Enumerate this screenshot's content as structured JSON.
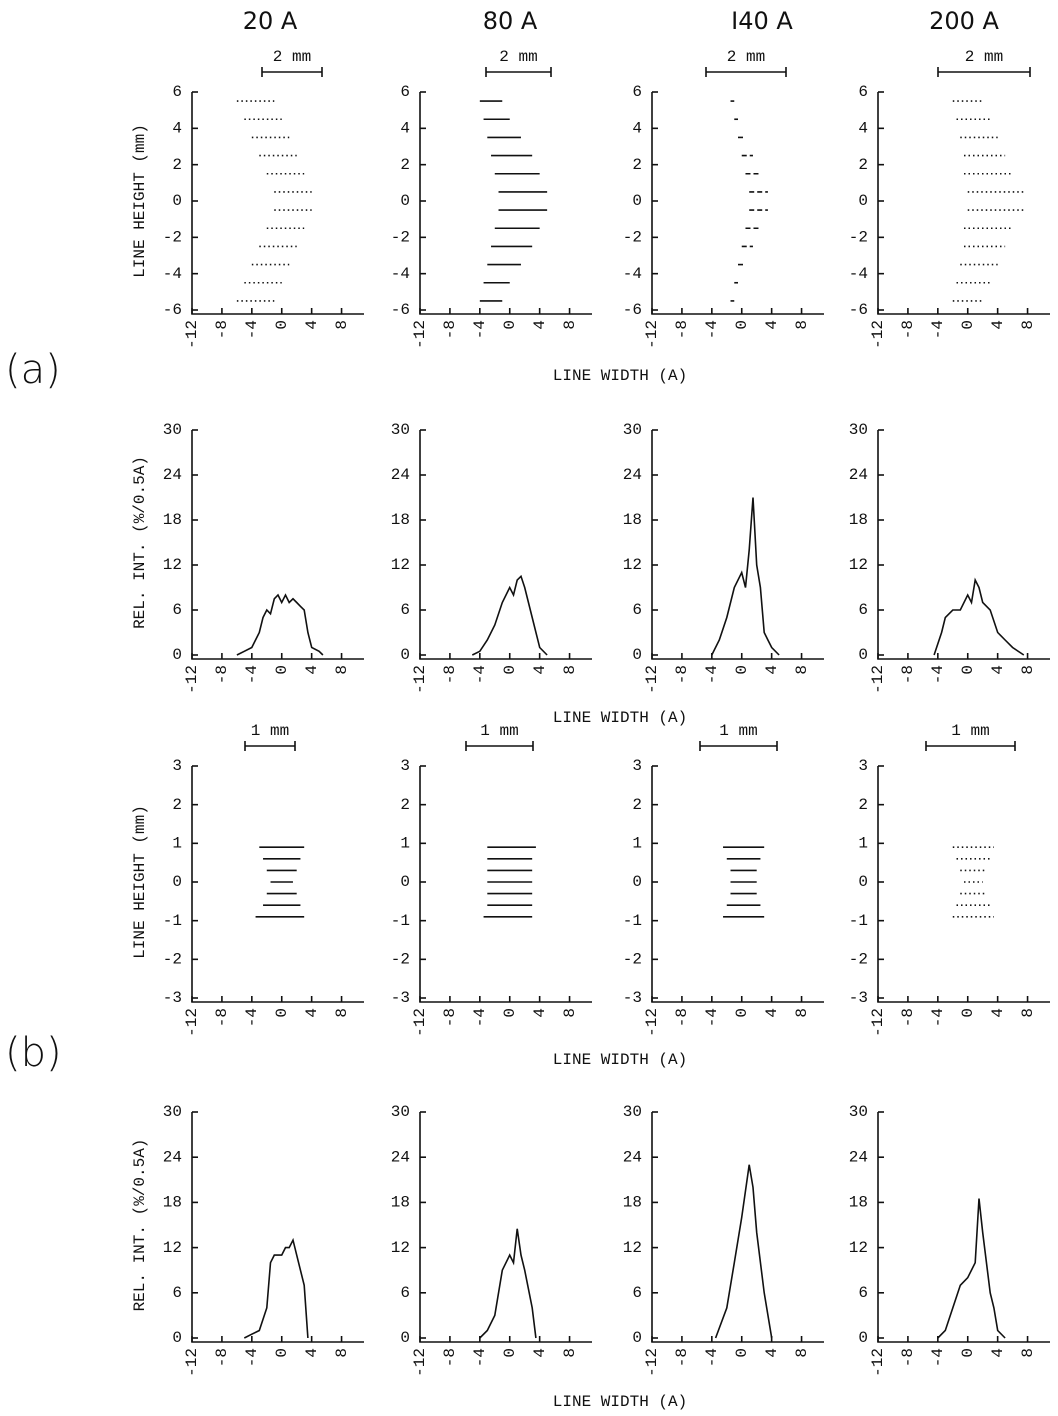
{
  "column_titles": [
    "20 A",
    "80 A",
    "I40 A",
    "200 A"
  ],
  "panel_labels": [
    "(a)",
    "(b)"
  ],
  "row_x_labels": [
    "LINE WIDTH (A)",
    "LINE WIDTH (A)",
    "LINE WIDTH (A)",
    "LINE WIDTH (A)"
  ],
  "row_y_labels": [
    "LINE HEIGHT (mm)",
    "REL. INT. (%/0.5A)",
    "LINE HEIGHT (mm)",
    "REL. INT. (%/0.5A)"
  ],
  "chart_data": [
    {
      "type": "spot",
      "line_style": "dotted",
      "scale_label": "2 mm",
      "xlim": [
        -12,
        11
      ],
      "xticks": [
        -12,
        -8,
        -4,
        0,
        4,
        8
      ],
      "ylim": [
        -6,
        6
      ],
      "yticks": [
        -6,
        -4,
        -2,
        0,
        2,
        4,
        6
      ],
      "y": [
        5.5,
        4.5,
        3.5,
        2.5,
        1.5,
        0.5,
        -0.5,
        -1.5,
        -2.5,
        -3.5,
        -4.5,
        -5.5
      ],
      "x_start": [
        -6,
        -5,
        -4,
        -3,
        -2,
        -1,
        -1,
        -2,
        -3,
        -4,
        -5,
        -6
      ],
      "x_end": [
        -1,
        0,
        1,
        2,
        3,
        4,
        4,
        3,
        2,
        1,
        0,
        -1
      ]
    },
    {
      "type": "spot",
      "line_style": "solid",
      "scale_label": "2 mm",
      "xlim": [
        -12,
        11
      ],
      "xticks": [
        -12,
        -8,
        -4,
        0,
        4,
        8
      ],
      "ylim": [
        -6,
        6
      ],
      "yticks": [
        -6,
        -4,
        -2,
        0,
        2,
        4,
        6
      ],
      "y": [
        5.5,
        4.5,
        3.5,
        2.5,
        1.5,
        0.5,
        -0.5,
        -1.5,
        -2.5,
        -3.5,
        -4.5,
        -5.5
      ],
      "x_start": [
        -4,
        -3.5,
        -3,
        -2.5,
        -2,
        -1.5,
        -1.5,
        -2,
        -2.5,
        -3,
        -3.5,
        -4
      ],
      "x_end": [
        -1,
        0,
        1.5,
        3,
        4,
        5,
        5,
        4,
        3,
        1.5,
        0,
        -1
      ]
    },
    {
      "type": "spot",
      "line_style": "dashed",
      "scale_label": "2 mm",
      "xlim": [
        -12,
        11
      ],
      "xticks": [
        -12,
        -8,
        -4,
        0,
        4,
        8
      ],
      "ylim": [
        -6,
        6
      ],
      "yticks": [
        -6,
        -4,
        -2,
        0,
        2,
        4,
        6
      ],
      "y": [
        5.5,
        4.5,
        3.5,
        2.5,
        1.5,
        0.5,
        -0.5,
        -1.5,
        -2.5,
        -3.5,
        -4.5,
        -5.5
      ],
      "x_start": [
        -1.5,
        -1,
        -0.5,
        0,
        0.5,
        1,
        1,
        0.5,
        0,
        -0.5,
        -1,
        -1.5
      ],
      "x_end": [
        -1,
        -0.5,
        0.5,
        1.5,
        2.5,
        3.5,
        3.5,
        2.5,
        1.5,
        0.5,
        -0.5,
        -1
      ]
    },
    {
      "type": "spot",
      "line_style": "dotted",
      "scale_label": "2 mm",
      "xlim": [
        -12,
        11
      ],
      "xticks": [
        -12,
        -8,
        -4,
        0,
        4,
        8
      ],
      "ylim": [
        -6,
        6
      ],
      "yticks": [
        -6,
        -4,
        -2,
        0,
        2,
        4,
        6
      ],
      "y": [
        5.5,
        4.5,
        3.5,
        2.5,
        1.5,
        0.5,
        -0.5,
        -1.5,
        -2.5,
        -3.5,
        -4.5,
        -5.5
      ],
      "x_start": [
        -2,
        -1.5,
        -1,
        -0.5,
        -0.5,
        0,
        0,
        -0.5,
        -0.5,
        -1,
        -1.5,
        -2
      ],
      "x_end": [
        2,
        3,
        4,
        5,
        6,
        7.5,
        7.5,
        6,
        5,
        4,
        3,
        2
      ]
    },
    {
      "type": "line",
      "xlim": [
        -12,
        11
      ],
      "xticks": [
        -12,
        -8,
        -4,
        0,
        4,
        8
      ],
      "ylim": [
        0,
        30
      ],
      "yticks": [
        0,
        6,
        12,
        18,
        24,
        30
      ],
      "x": [
        -6,
        -5,
        -4,
        -3,
        -2.5,
        -2,
        -1.5,
        -1,
        -0.5,
        0,
        0.5,
        1,
        1.5,
        2,
        2.5,
        3,
        3.5,
        4,
        5,
        5.5
      ],
      "values": [
        0,
        0.5,
        1,
        3,
        5,
        6,
        5.5,
        7.5,
        8,
        7,
        8,
        7,
        7.5,
        7,
        6.5,
        6,
        3,
        1,
        0.5,
        0
      ]
    },
    {
      "type": "line",
      "xlim": [
        -12,
        11
      ],
      "xticks": [
        -12,
        -8,
        -4,
        0,
        4,
        8
      ],
      "ylim": [
        0,
        30
      ],
      "yticks": [
        0,
        6,
        12,
        18,
        24,
        30
      ],
      "x": [
        -5,
        -4,
        -3,
        -2,
        -1,
        0,
        0.5,
        1,
        1.5,
        2,
        3,
        4,
        5
      ],
      "values": [
        0,
        0.5,
        2,
        4,
        7,
        9,
        8,
        10,
        10.5,
        9,
        5,
        1,
        0
      ]
    },
    {
      "type": "line",
      "xlim": [
        -12,
        11
      ],
      "xticks": [
        -12,
        -8,
        -4,
        0,
        4,
        8
      ],
      "ylim": [
        0,
        30
      ],
      "yticks": [
        0,
        6,
        12,
        18,
        24,
        30
      ],
      "x": [
        -4,
        -3,
        -2,
        -1,
        0,
        0.5,
        1,
        1.5,
        2,
        2.5,
        3,
        3.5,
        4,
        5
      ],
      "values": [
        0,
        2,
        5,
        9,
        11,
        9,
        14,
        21,
        12,
        9,
        3,
        2,
        1,
        0
      ]
    },
    {
      "type": "line",
      "xlim": [
        -12,
        11
      ],
      "xticks": [
        -12,
        -8,
        -4,
        0,
        4,
        8
      ],
      "ylim": [
        0,
        30
      ],
      "yticks": [
        0,
        6,
        12,
        18,
        24,
        30
      ],
      "x": [
        -4.5,
        -3.5,
        -3,
        -2,
        -1,
        0,
        0.5,
        1,
        1.5,
        2,
        3,
        4,
        5,
        6,
        7.5
      ],
      "values": [
        0,
        3,
        5,
        6,
        6,
        8,
        7,
        10,
        9,
        7,
        6,
        3,
        2,
        1,
        0
      ]
    },
    {
      "type": "spot",
      "line_style": "solid",
      "scale_label": "1 mm",
      "xlim": [
        -12,
        11
      ],
      "xticks": [
        -12,
        -8,
        -4,
        0,
        4,
        8
      ],
      "ylim": [
        -3,
        3
      ],
      "yticks": [
        -3,
        -2,
        -1,
        0,
        1,
        2,
        3
      ],
      "y": [
        0.9,
        0.6,
        0.3,
        0,
        -0.3,
        -0.6,
        -0.9
      ],
      "x_start": [
        -3,
        -2.5,
        -2,
        -1.5,
        -2,
        -2.5,
        -3.5
      ],
      "x_end": [
        3,
        2.5,
        2,
        1.5,
        2,
        2.5,
        3
      ]
    },
    {
      "type": "spot",
      "line_style": "solid",
      "scale_label": "1 mm",
      "xlim": [
        -12,
        11
      ],
      "xticks": [
        -12,
        -8,
        -4,
        0,
        4,
        8
      ],
      "ylim": [
        -3,
        3
      ],
      "yticks": [
        -3,
        -2,
        -1,
        0,
        1,
        2,
        3
      ],
      "y": [
        0.9,
        0.6,
        0.3,
        0,
        -0.3,
        -0.6,
        -0.9
      ],
      "x_start": [
        -3,
        -3,
        -3,
        -3,
        -3,
        -3,
        -3.5
      ],
      "x_end": [
        3.5,
        3,
        3,
        3,
        3,
        3,
        3
      ]
    },
    {
      "type": "spot",
      "line_style": "solid",
      "scale_label": "1 mm",
      "xlim": [
        -12,
        11
      ],
      "xticks": [
        -12,
        -8,
        -4,
        0,
        4,
        8
      ],
      "ylim": [
        -3,
        3
      ],
      "yticks": [
        -3,
        -2,
        -1,
        0,
        1,
        2,
        3
      ],
      "y": [
        0.9,
        0.6,
        0.3,
        0,
        -0.3,
        -0.6,
        -0.9
      ],
      "x_start": [
        -2.5,
        -2,
        -1.5,
        -1.5,
        -1.5,
        -2,
        -2.5
      ],
      "x_end": [
        3,
        2.5,
        2,
        2,
        2,
        2.5,
        3
      ]
    },
    {
      "type": "spot",
      "line_style": "dotted",
      "scale_label": "1 mm",
      "xlim": [
        -12,
        11
      ],
      "xticks": [
        -12,
        -8,
        -4,
        0,
        4,
        8
      ],
      "ylim": [
        -3,
        3
      ],
      "yticks": [
        -3,
        -2,
        -1,
        0,
        1,
        2,
        3
      ],
      "y": [
        0.9,
        0.6,
        0.3,
        0,
        -0.3,
        -0.6,
        -0.9
      ],
      "x_start": [
        -2,
        -1.5,
        -1,
        -0.5,
        -1,
        -1.5,
        -2
      ],
      "x_end": [
        3.5,
        3,
        2.5,
        2,
        2.5,
        3,
        3.5
      ]
    },
    {
      "type": "line",
      "xlim": [
        -12,
        11
      ],
      "xticks": [
        -12,
        -8,
        -4,
        0,
        4,
        8
      ],
      "ylim": [
        0,
        30
      ],
      "yticks": [
        0,
        6,
        12,
        18,
        24,
        30
      ],
      "x": [
        -5,
        -4,
        -3,
        -2,
        -1.5,
        -1,
        0,
        0.5,
        1,
        1.5,
        2,
        3,
        3.5
      ],
      "values": [
        0,
        0.5,
        1,
        4,
        10,
        11,
        11,
        12,
        12,
        13,
        11,
        7,
        0
      ]
    },
    {
      "type": "line",
      "xlim": [
        -12,
        11
      ],
      "xticks": [
        -12,
        -8,
        -4,
        0,
        4,
        8
      ],
      "ylim": [
        0,
        30
      ],
      "yticks": [
        0,
        6,
        12,
        18,
        24,
        30
      ],
      "x": [
        -4,
        -3,
        -2,
        -1,
        0,
        0.5,
        1,
        1.5,
        2,
        3,
        3.5
      ],
      "values": [
        0,
        1,
        3,
        9,
        11,
        10,
        14.5,
        11,
        9,
        4,
        0
      ]
    },
    {
      "type": "line",
      "xlim": [
        -12,
        11
      ],
      "xticks": [
        -12,
        -8,
        -4,
        0,
        4,
        8
      ],
      "ylim": [
        0,
        30
      ],
      "yticks": [
        0,
        6,
        12,
        18,
        24,
        30
      ],
      "x": [
        -3.5,
        -2,
        -1,
        0,
        1,
        1.5,
        2,
        3,
        4
      ],
      "values": [
        0,
        4,
        10,
        16,
        23,
        20,
        14,
        6,
        0
      ]
    },
    {
      "type": "line",
      "xlim": [
        -12,
        11
      ],
      "xticks": [
        -12,
        -8,
        -4,
        0,
        4,
        8
      ],
      "ylim": [
        0,
        30
      ],
      "yticks": [
        0,
        6,
        12,
        18,
        24,
        30
      ],
      "x": [
        -4,
        -3,
        -2,
        -1,
        0,
        1,
        1.5,
        2,
        3,
        3.5,
        4,
        5
      ],
      "values": [
        0,
        1,
        4,
        7,
        8,
        10,
        18.5,
        14,
        6,
        4,
        1,
        0
      ]
    }
  ]
}
